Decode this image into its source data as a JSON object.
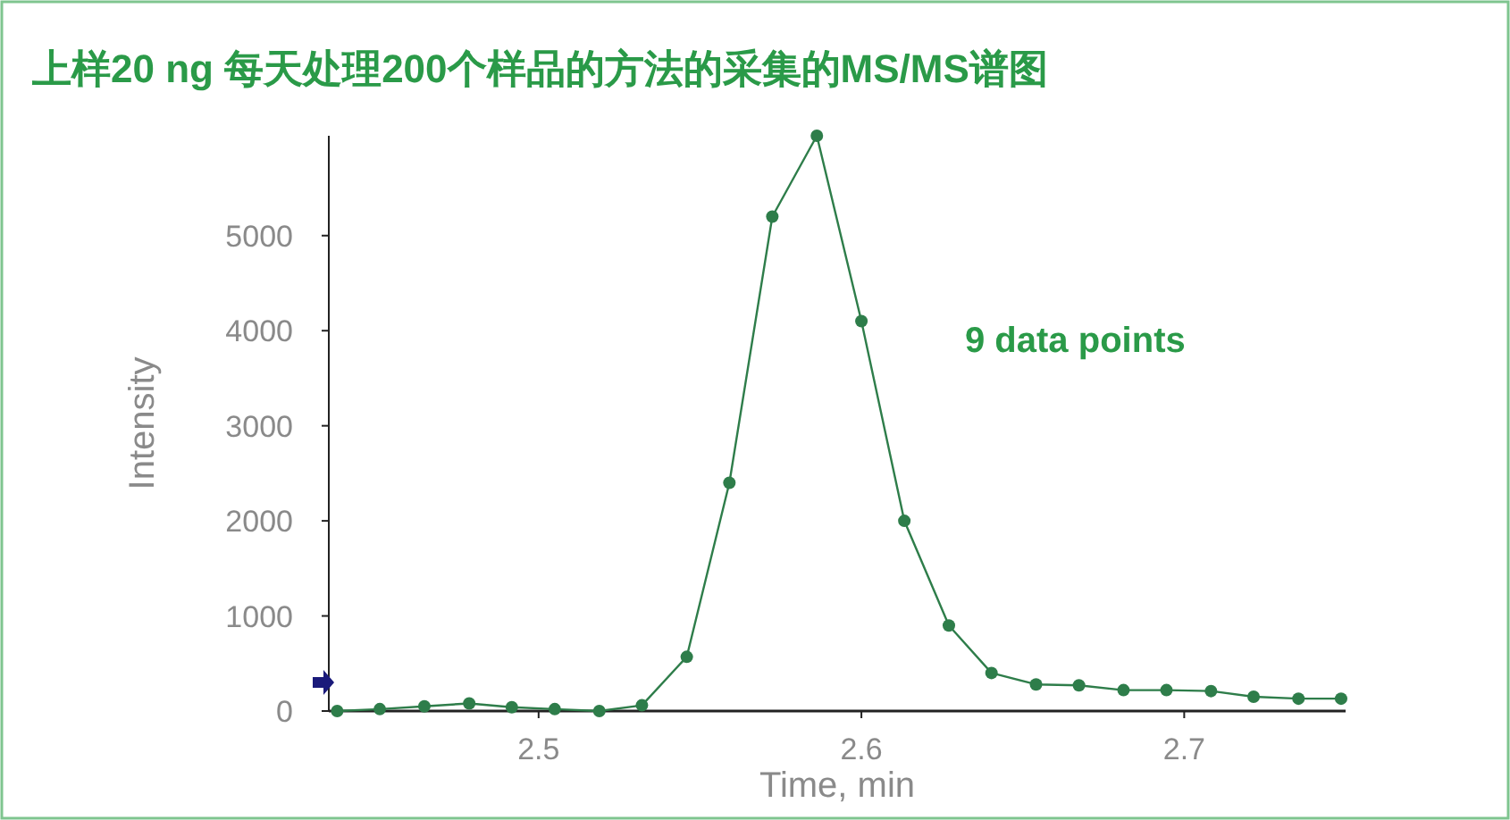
{
  "chart_data": {
    "type": "line",
    "title": "上样20 ng 每天处理200个样品的方法的采集的MS/MS谱图",
    "xlabel": "Time, min",
    "ylabel": "Intensity",
    "x": [
      2.4376,
      2.4508,
      2.4646,
      2.4785,
      2.4917,
      2.505,
      2.5188,
      2.532,
      2.5459,
      2.5591,
      2.5724,
      2.5862,
      2.6,
      2.6133,
      2.6271,
      2.6403,
      2.6541,
      2.6674,
      2.6812,
      2.6945,
      2.7083,
      2.7215,
      2.7354,
      2.7486
    ],
    "series": [
      {
        "color": "#2e7d4a",
        "values": [
          0,
          20,
          50,
          80,
          40,
          20,
          0,
          60,
          570,
          2400,
          5200,
          6050,
          4100,
          2000,
          900,
          400,
          280,
          270,
          220,
          220,
          210,
          150,
          130,
          130
        ]
      }
    ],
    "xlim": [
      2.435,
      2.75
    ],
    "ylim": [
      0,
      6050
    ],
    "xticks": [
      2.5,
      2.6,
      2.7
    ],
    "yticks": [
      0,
      1000,
      2000,
      3000,
      4000,
      5000
    ],
    "marker": "circle",
    "line_style": "solid",
    "annotations": [
      "9 data points"
    ]
  }
}
